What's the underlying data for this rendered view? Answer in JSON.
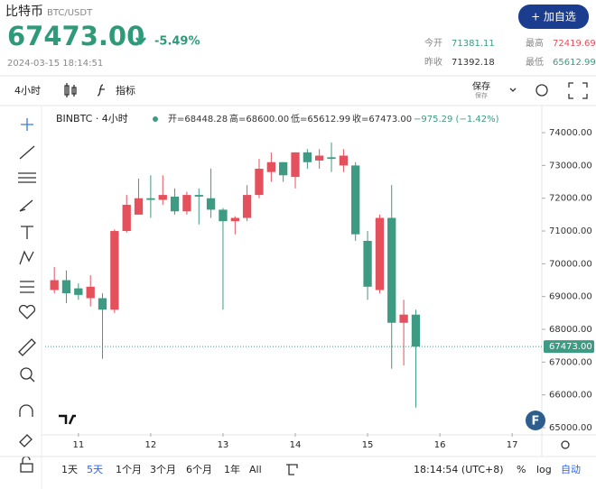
{
  "header": {
    "name": "比特币",
    "pair": "BTC/USDT",
    "add_button": "+ 加自选",
    "price": "67473.00",
    "change": "-5.49%",
    "time": "2024-03-15 18:14:51",
    "stats": [
      {
        "label": "今开",
        "value": "71381.11"
      },
      {
        "label": "最高",
        "value": "72419.69"
      },
      {
        "label": "昨收",
        "value": "71392.18"
      },
      {
        "label": "最低",
        "value": "65612.99"
      }
    ]
  },
  "toolbar": {
    "interval": "4小时",
    "indicators": "指标",
    "save": "保存",
    "save_sub": "保存"
  },
  "bottom": {
    "ranges": [
      "1天",
      "5天",
      "1个月",
      "3个月",
      "6个月",
      "1年",
      "All"
    ],
    "time": "18:14:54 (UTC+8)",
    "percent": "%",
    "log": "log",
    "auto": "自动"
  },
  "chart_data": {
    "type": "candlestick",
    "symbol": "BINBTC · 4小时",
    "legend": [
      "开=68448.28",
      "高=68600.00",
      "低=65612.99",
      "收=67473.00",
      "−975.29 (−1.42%)"
    ],
    "badge": "F",
    "up_color": "#e5505d",
    "down_color": "#3d9a83",
    "x": [
      10.667,
      10.833,
      11,
      11.167,
      11.333,
      11.5,
      11.667,
      11.833,
      12,
      12.167,
      12.333,
      12.5,
      12.667,
      12.833,
      13,
      13.167,
      13.333,
      13.5,
      13.667,
      13.833,
      14,
      14.167,
      14.333,
      14.5,
      14.667,
      14.833,
      15,
      15.167,
      15.333,
      15.5,
      15.667
    ],
    "open": [
      69200,
      69500,
      69250,
      68950,
      68950,
      68600,
      71000,
      71500,
      72000,
      71950,
      72050,
      71600,
      72100,
      72000,
      71650,
      71300,
      71400,
      72100,
      72800,
      73100,
      72650,
      73400,
      73150,
      73250,
      73000,
      73000,
      70700,
      69200,
      71400,
      68200,
      68448.28
    ],
    "high": [
      69900,
      69800,
      69400,
      69650,
      69100,
      71050,
      72100,
      72600,
      72700,
      72700,
      72300,
      72200,
      72300,
      72900,
      71700,
      71450,
      72400,
      73200,
      73400,
      73100,
      73400,
      73500,
      73500,
      73700,
      73500,
      73100,
      71000,
      71500,
      72400,
      68900,
      68600
    ],
    "low": [
      69100,
      68800,
      68900,
      68700,
      67100,
      68500,
      70950,
      71500,
      71400,
      71800,
      71500,
      71500,
      71200,
      71400,
      68600,
      70900,
      71300,
      72000,
      72500,
      72500,
      72300,
      72900,
      72900,
      72800,
      72800,
      70700,
      68900,
      69100,
      66800,
      66900,
      65612.99
    ],
    "close": [
      69500,
      69100,
      69050,
      69300,
      68600,
      71000,
      71800,
      72000,
      71950,
      72100,
      71600,
      72100,
      72050,
      71650,
      71300,
      71400,
      72100,
      72900,
      73100,
      72700,
      73400,
      73100,
      73300,
      73200,
      73300,
      70900,
      69300,
      71400,
      68200,
      68450,
      67473
    ],
    "last_price": {
      "value": 67473,
      "label": "67473.00"
    },
    "xlim": [
      10.54,
      17.41
    ],
    "xticks": [
      11,
      12,
      13,
      14,
      15,
      16,
      17
    ],
    "ylim": [
      64835,
      74800
    ],
    "yticks": [
      {
        "value": 65000,
        "label": "65000.00"
      },
      {
        "value": 66000,
        "label": "66000.00"
      },
      {
        "value": 67000,
        "label": "67000.00"
      },
      {
        "value": 68000,
        "label": "68000.00"
      },
      {
        "value": 69000,
        "label": "69000.00"
      },
      {
        "value": 70000,
        "label": "70000.00"
      },
      {
        "value": 71000,
        "label": "71000.00"
      },
      {
        "value": 72000,
        "label": "72000.00"
      },
      {
        "value": 73000,
        "label": "73000.00"
      },
      {
        "value": 74000,
        "label": "74000.00"
      }
    ],
    "grid": false
  }
}
